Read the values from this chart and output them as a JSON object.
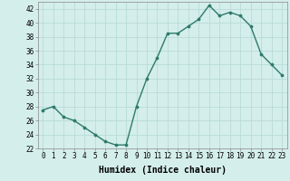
{
  "x": [
    0,
    1,
    2,
    3,
    4,
    5,
    6,
    7,
    8,
    9,
    10,
    11,
    12,
    13,
    14,
    15,
    16,
    17,
    18,
    19,
    20,
    21,
    22,
    23
  ],
  "y": [
    27.5,
    28,
    26.5,
    26,
    25,
    24,
    23,
    22.5,
    22.5,
    28,
    32,
    35,
    38.5,
    38.5,
    39.5,
    40.5,
    42.5,
    41,
    41.5,
    41,
    39.5,
    35.5,
    34,
    32.5
  ],
  "line_color": "#2d7a6a",
  "marker_color": "#2d7a6a",
  "bg_color": "#d4eeeb",
  "grid_color": "#b8dbd7",
  "xlabel": "Humidex (Indice chaleur)",
  "ylim": [
    22,
    43
  ],
  "xlim": [
    -0.5,
    23.5
  ],
  "yticks": [
    22,
    24,
    26,
    28,
    30,
    32,
    34,
    36,
    38,
    40,
    42
  ],
  "xticks": [
    0,
    1,
    2,
    3,
    4,
    5,
    6,
    7,
    8,
    9,
    10,
    11,
    12,
    13,
    14,
    15,
    16,
    17,
    18,
    19,
    20,
    21,
    22,
    23
  ],
  "tick_fontsize": 5.5,
  "xlabel_fontsize": 7.0,
  "marker_size": 2.2,
  "line_width": 1.0
}
